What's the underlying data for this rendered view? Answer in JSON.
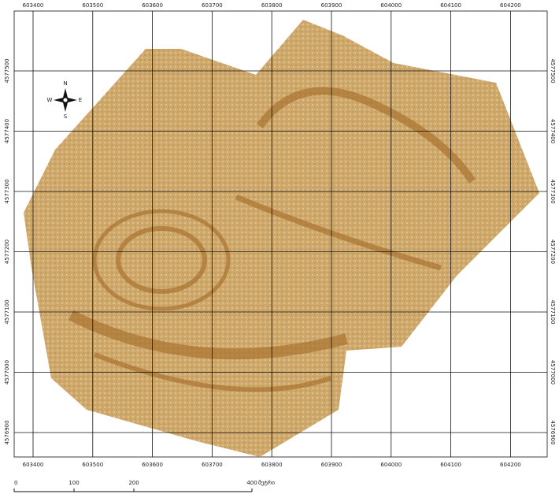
{
  "grid": {
    "x_labels": [
      "603400",
      "603500",
      "603600",
      "603700",
      "603800",
      "603900",
      "604000",
      "604100",
      "604200"
    ],
    "y_labels": [
      "4577500",
      "4577400",
      "4577300",
      "4577200",
      "4577100",
      "4577000",
      "4576900"
    ]
  },
  "compass": {
    "north": "N",
    "south": "S",
    "east": "E",
    "west": "W"
  },
  "scale": {
    "labels": [
      "0",
      "100",
      "200",
      "400"
    ],
    "unit": "მეტრი"
  }
}
